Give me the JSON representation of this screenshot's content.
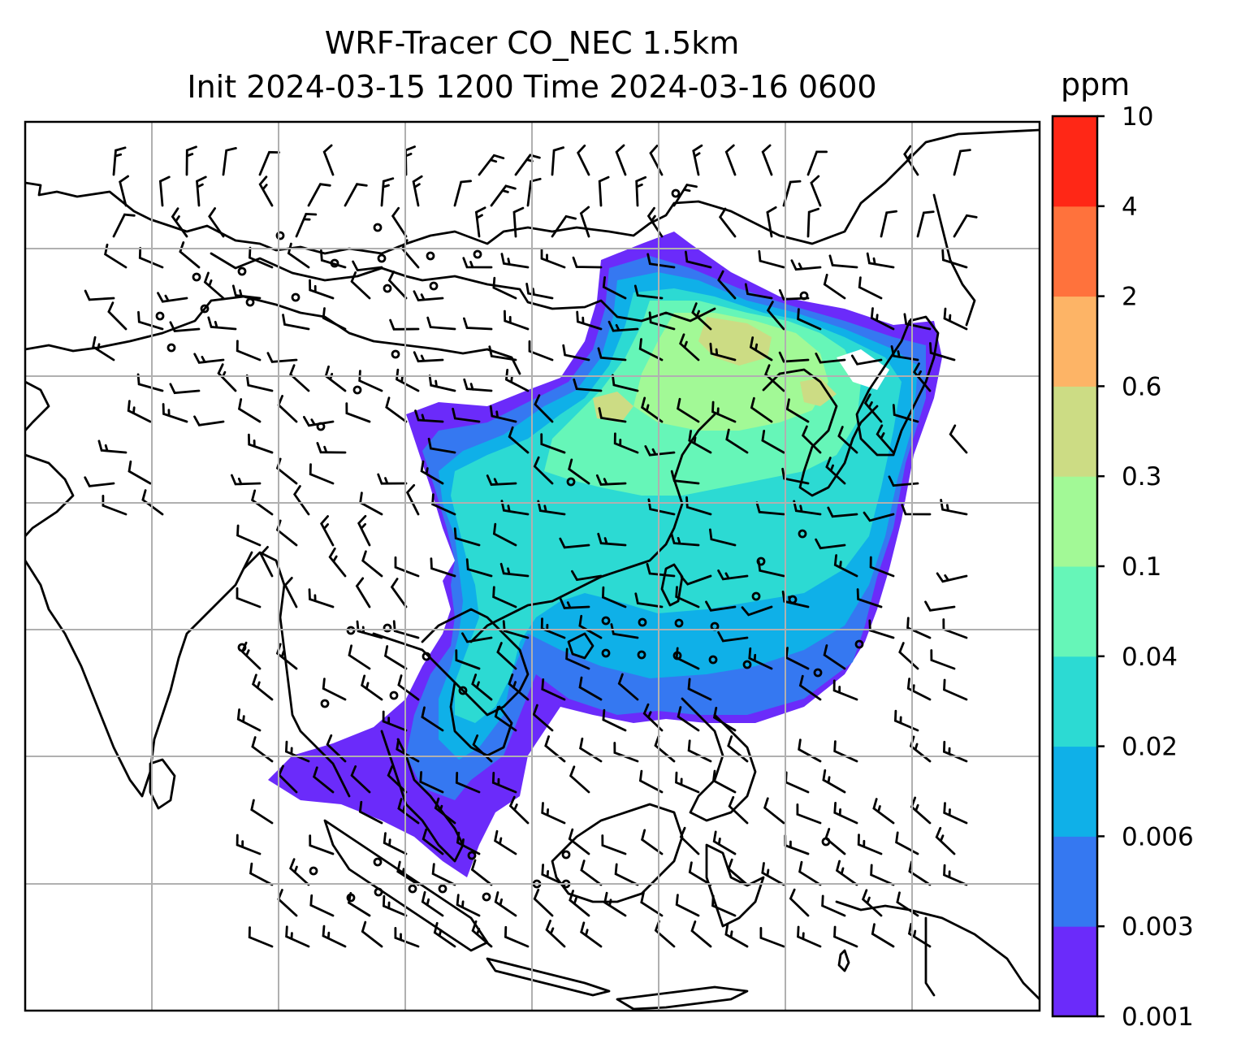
{
  "title": {
    "line1": "WRF-Tracer CO_NEC 1.5km",
    "line2": "Init 2024-03-15 1200 Time 2024-03-16 0600"
  },
  "colorbar": {
    "unit": "ppm",
    "levels": [
      "0.001",
      "0.003",
      "0.006",
      "0.02",
      "0.04",
      "0.1",
      "0.3",
      "0.6",
      "2",
      "4",
      "10"
    ],
    "colors": [
      "#6b2bfa",
      "#3578f1",
      "#0fb0e8",
      "#2cdad3",
      "#66f6b8",
      "#a2f996",
      "#ccdc84",
      "#fdb466",
      "#ff723c",
      "#ff2716"
    ]
  },
  "map": {
    "gridlines": true,
    "gridline_color": "#b0b0b0",
    "coastline_color": "#000000",
    "wind_barb_color": "#000000"
  }
}
